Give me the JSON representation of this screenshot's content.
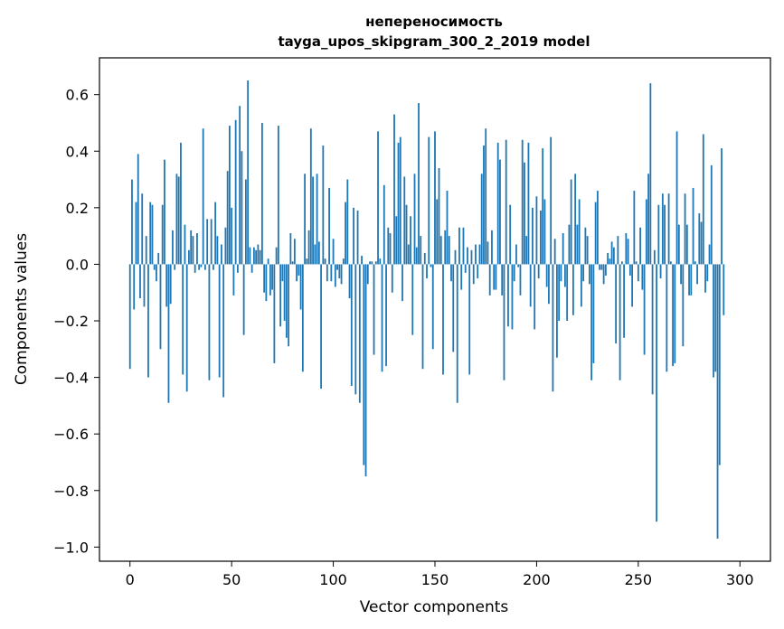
{
  "chart_data": {
    "type": "bar",
    "title": "непереносимость",
    "subtitle": "tayga_upos_skipgram_300_2_2019 model",
    "xlabel": "Vector components",
    "ylabel": "Components values",
    "xlim": [
      -15,
      315
    ],
    "ylim": [
      -1.05,
      0.73
    ],
    "xticks": [
      0,
      50,
      100,
      150,
      200,
      250,
      300
    ],
    "yticks": [
      0.6,
      0.4,
      0.2,
      0.0,
      -0.2,
      -0.4,
      -0.6,
      -0.8,
      -1.0
    ],
    "ytick_labels": [
      "0.6",
      "0.4",
      "0.2",
      "0.0",
      "−0.2",
      "−0.4",
      "−0.6",
      "−0.8",
      "−1.0"
    ],
    "bar_color": "#1f77b4",
    "grid": false,
    "values": [
      -0.37,
      0.3,
      -0.16,
      0.22,
      0.39,
      -0.12,
      0.25,
      -0.15,
      0.1,
      -0.4,
      0.22,
      0.21,
      -0.02,
      -0.06,
      0.04,
      -0.3,
      0.21,
      0.37,
      -0.15,
      -0.49,
      -0.14,
      0.12,
      -0.02,
      0.32,
      0.31,
      0.43,
      -0.39,
      0.14,
      -0.45,
      0.05,
      0.12,
      0.1,
      -0.03,
      0.11,
      -0.02,
      -0.01,
      0.48,
      -0.02,
      0.16,
      -0.41,
      0.16,
      -0.02,
      0.22,
      0.1,
      -0.4,
      0.07,
      -0.47,
      0.13,
      0.33,
      0.49,
      0.2,
      -0.11,
      0.51,
      -0.03,
      0.56,
      0.4,
      -0.25,
      0.3,
      0.65,
      0.06,
      -0.03,
      0.06,
      0.05,
      0.07,
      0.05,
      0.5,
      -0.1,
      -0.13,
      0.02,
      -0.11,
      -0.09,
      -0.35,
      0.06,
      0.49,
      -0.22,
      -0.06,
      -0.2,
      -0.26,
      -0.29,
      0.11,
      0.01,
      0.09,
      -0.06,
      -0.04,
      -0.16,
      -0.38,
      0.32,
      0.02,
      0.12,
      0.48,
      0.31,
      0.07,
      0.32,
      0.08,
      -0.44,
      0.42,
      0.02,
      -0.06,
      0.27,
      -0.06,
      0.09,
      -0.08,
      -0.02,
      -0.05,
      -0.07,
      0.02,
      0.22,
      0.3,
      -0.12,
      -0.43,
      0.2,
      -0.46,
      0.19,
      -0.49,
      0.03,
      -0.71,
      -0.75,
      -0.07,
      0.01,
      0.01,
      -0.32,
      0.01,
      0.47,
      0.02,
      -0.38,
      0.28,
      -0.36,
      0.13,
      0.11,
      -0.1,
      0.53,
      0.17,
      0.43,
      0.45,
      -0.13,
      0.31,
      0.21,
      0.07,
      0.17,
      -0.25,
      0.32,
      0.06,
      0.57,
      0.1,
      -0.37,
      0.04,
      -0.05,
      0.45,
      -0.01,
      -0.3,
      0.47,
      0.23,
      0.34,
      0.1,
      -0.39,
      0.12,
      0.26,
      0.1,
      -0.06,
      -0.31,
      0.05,
      -0.49,
      0.13,
      -0.09,
      0.13,
      -0.03,
      0.06,
      -0.39,
      0.05,
      -0.07,
      0.07,
      -0.05,
      0.07,
      0.32,
      0.42,
      0.48,
      0.08,
      -0.11,
      0.12,
      -0.09,
      -0.09,
      0.43,
      0.37,
      -0.11,
      -0.41,
      0.44,
      -0.22,
      0.21,
      -0.23,
      -0.06,
      0.07,
      -0.01,
      -0.11,
      0.44,
      0.36,
      0.1,
      0.43,
      -0.15,
      0.2,
      -0.23,
      0.24,
      -0.05,
      0.19,
      0.41,
      0.23,
      -0.08,
      -0.14,
      0.45,
      -0.45,
      0.09,
      -0.33,
      -0.2,
      -0.06,
      0.11,
      -0.08,
      -0.2,
      0.14,
      0.3,
      -0.18,
      0.32,
      0.14,
      0.23,
      -0.15,
      -0.06,
      0.13,
      0.1,
      -0.07,
      -0.41,
      -0.35,
      0.22,
      0.26,
      -0.02,
      -0.02,
      -0.07,
      -0.04,
      0.04,
      0.02,
      0.08,
      0.06,
      -0.28,
      0.1,
      -0.41,
      0.01,
      -0.26,
      0.11,
      0.09,
      -0.04,
      -0.15,
      0.26,
      0.01,
      -0.06,
      0.13,
      -0.09,
      -0.32,
      0.23,
      0.32,
      0.64,
      -0.46,
      0.05,
      -0.91,
      0.21,
      -0.05,
      0.25,
      0.21,
      -0.38,
      0.25,
      0.01,
      -0.36,
      -0.35,
      0.47,
      0.14,
      -0.07,
      -0.29,
      0.25,
      0.14,
      -0.11,
      -0.11,
      0.27,
      0.01,
      -0.07,
      0.18,
      0.15,
      0.46,
      -0.1,
      -0.06,
      0.07,
      0.35,
      -0.4,
      -0.38,
      -0.97,
      -0.71,
      0.41,
      -0.18
    ]
  }
}
